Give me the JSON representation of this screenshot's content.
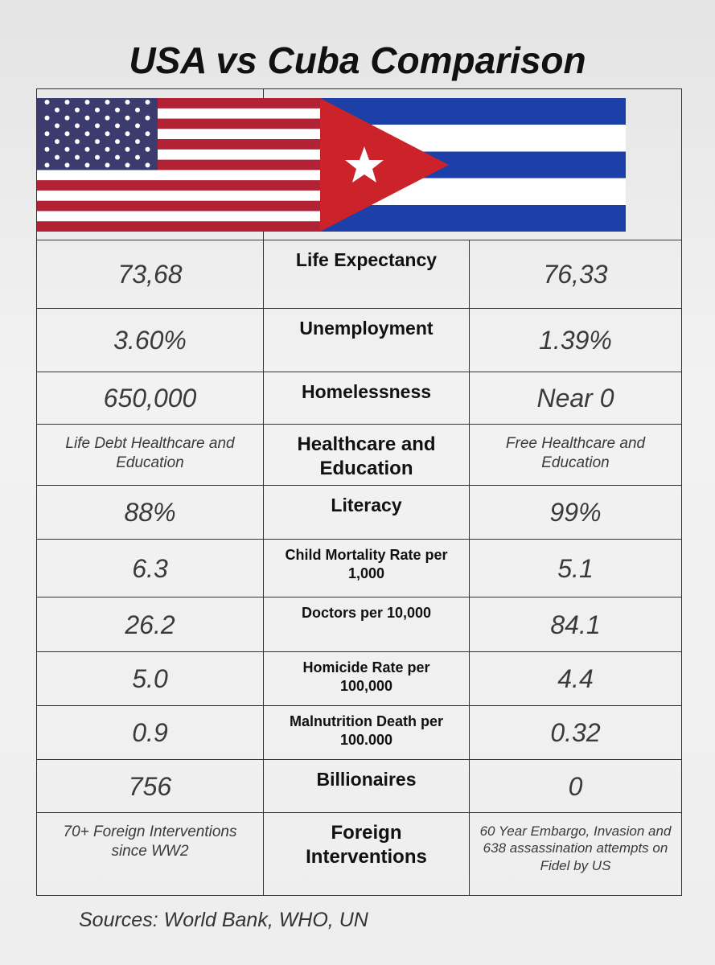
{
  "header": {
    "title": "USA vs Cuba Comparison"
  },
  "table": {
    "rows": [
      [
        "73,68",
        "Life Expectancy",
        "76,33"
      ],
      [
        "3.60%",
        "Unemployment",
        "1.39%"
      ],
      [
        "650,000",
        "Homelessness",
        "Near 0"
      ],
      [
        "Life Debt Healthcare and Education",
        "Healthcare and Education",
        "Free Healthcare and Education"
      ],
      [
        "88%",
        "Literacy",
        "99%"
      ],
      [
        "6.3",
        "Child Mortality Rate per 1,000",
        "5.1"
      ],
      [
        "26.2",
        "Doctors per 10,000",
        "84.1"
      ],
      [
        "5.0",
        "Homicide Rate per 100,000",
        "4.4"
      ],
      [
        "0.9",
        "Malnutrition Death per 100.000",
        "0.32"
      ],
      [
        "756",
        "Billionaires",
        "0"
      ],
      [
        "70+ Foreign Interventions since WW2",
        "Foreign Interventions",
        "60 Year Embargo, Invasion and 638 assassination attempts on Fidel by US"
      ]
    ]
  },
  "footer": {
    "source": "Sources: World Bank, WHO, UN"
  }
}
